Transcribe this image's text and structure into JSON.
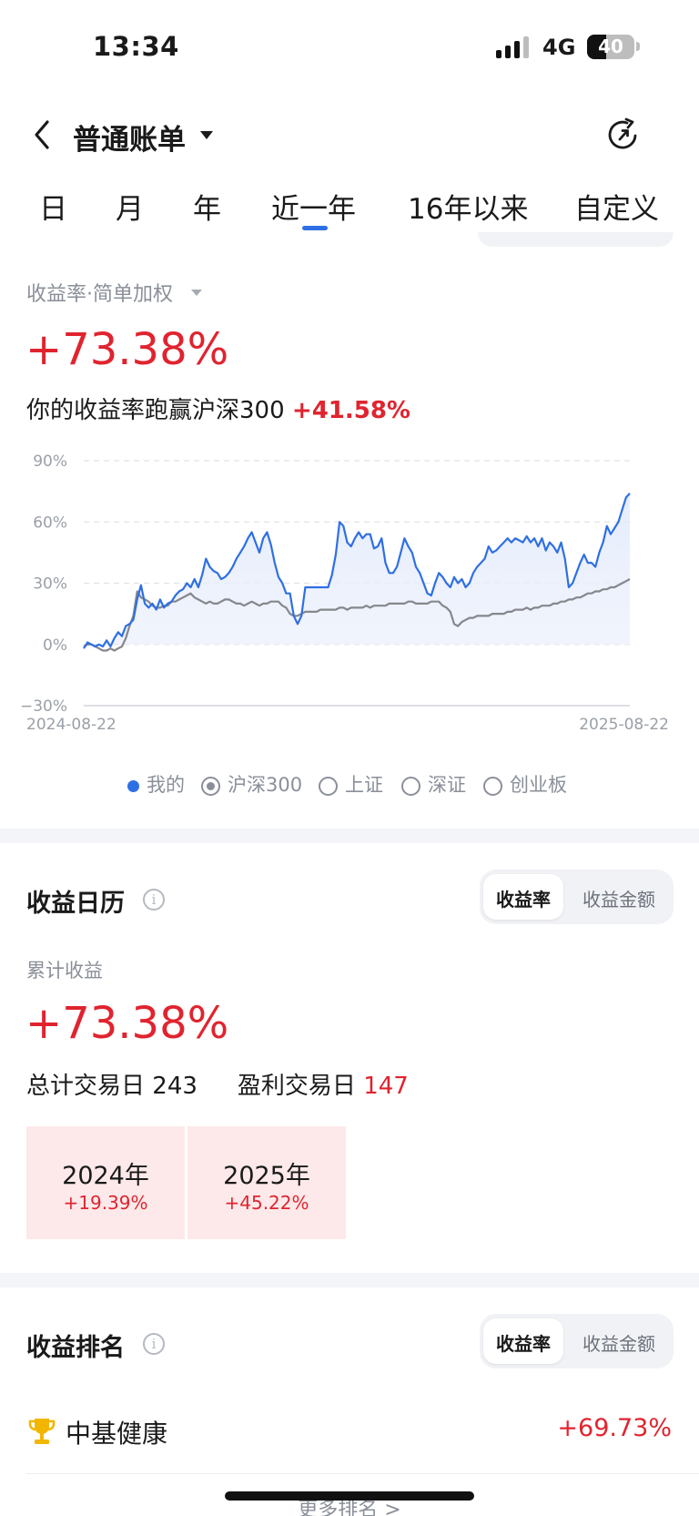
{
  "status_bar": {
    "time": "13:34",
    "network": "4G",
    "battery": "40"
  },
  "header": {
    "title": "普通账单"
  },
  "tabs": [
    "日",
    "月",
    "年",
    "近一年",
    "16年以来",
    "自定义"
  ],
  "active_tab": "近一年",
  "returns": {
    "label": "收益率·简单加权",
    "value": "+73.38%",
    "beat_text": "你的收益率跑赢沪深300",
    "beat_value": "+41.58%"
  },
  "chart_data": {
    "type": "line",
    "y_ticks": [
      "90%",
      "60%",
      "30%",
      "0%",
      "−30%"
    ],
    "ylim": [
      -30,
      90
    ],
    "x_start_label": "2024-08-22",
    "x_end_label": "2025-08-22",
    "series": [
      {
        "name": "我的",
        "color": "#2f6fe4",
        "values": [
          -2,
          1,
          0,
          -1,
          0,
          -1,
          2,
          -1,
          3,
          6,
          4,
          9,
          10,
          12,
          22,
          29,
          20,
          18,
          20,
          17,
          22,
          18,
          20,
          21,
          24,
          26,
          27,
          30,
          28,
          32,
          28,
          34,
          42,
          38,
          36,
          35,
          32,
          33,
          35,
          38,
          42,
          45,
          48,
          52,
          55,
          50,
          45,
          52,
          55,
          49,
          40,
          33,
          30,
          25,
          25,
          14,
          10,
          14,
          28,
          28,
          28,
          28,
          28,
          28,
          28,
          34,
          44,
          60,
          58,
          50,
          48,
          52,
          55,
          52,
          54,
          54,
          47,
          48,
          52,
          40,
          35,
          35,
          38,
          45,
          52,
          48,
          45,
          38,
          35,
          30,
          25,
          24,
          30,
          35,
          33,
          30,
          28,
          33,
          30,
          32,
          28,
          30,
          35,
          38,
          40,
          42,
          48,
          45,
          46,
          48,
          50,
          52,
          50,
          52,
          51,
          50,
          53,
          50,
          52,
          48,
          52,
          46,
          50,
          48,
          45,
          50,
          42,
          28,
          30,
          35,
          40,
          44,
          40,
          40,
          38,
          45,
          50,
          58,
          54,
          57,
          60,
          66,
          72,
          74
        ]
      },
      {
        "name": "沪深300",
        "color": "#85878c",
        "values": [
          -1,
          0,
          0,
          -1,
          -2,
          -3,
          -3,
          -2,
          -3,
          -2,
          -1,
          3,
          9,
          14,
          26,
          23,
          22,
          21,
          19,
          18,
          18,
          19,
          19,
          21,
          21,
          22,
          23,
          24,
          25,
          23,
          22,
          21,
          20,
          21,
          20,
          20,
          21,
          22,
          22,
          21,
          20,
          20,
          19,
          20,
          21,
          20,
          19,
          20,
          20,
          21,
          21,
          21,
          19,
          18,
          15,
          14,
          14,
          15,
          16,
          16,
          16,
          16,
          17,
          17,
          17,
          17,
          17,
          18,
          18,
          17,
          18,
          18,
          18,
          18,
          19,
          18,
          19,
          19,
          19,
          19,
          20,
          20,
          20,
          20,
          20,
          21,
          21,
          20,
          20,
          20,
          20,
          21,
          21,
          21,
          19,
          18,
          16,
          10,
          9,
          11,
          12,
          13,
          13,
          14,
          14,
          14,
          14,
          15,
          15,
          15,
          15,
          16,
          16,
          17,
          17,
          17,
          18,
          17,
          18,
          18,
          19,
          19,
          19,
          20,
          20,
          21,
          21,
          22,
          22,
          23,
          23,
          24,
          25,
          25,
          26,
          26,
          27,
          27,
          28,
          28,
          29,
          30,
          31,
          32
        ]
      }
    ],
    "legend": [
      "我的",
      "沪深300",
      "上证",
      "深证",
      "创业板"
    ],
    "legend_selected": "沪深300",
    "grid": true
  },
  "calendar": {
    "title": "收益日历",
    "info_glyph": "i",
    "toggle": [
      "收益率",
      "收益金额"
    ],
    "cumulative_label": "累计收益",
    "cumulative_value": "+73.38%",
    "total_days_label": "总计交易日",
    "total_days": "243",
    "profit_days_label": "盈利交易日",
    "profit_days": "147",
    "years": [
      {
        "year": "2024年",
        "pct": "+19.39%"
      },
      {
        "year": "2025年",
        "pct": "+45.22%"
      }
    ]
  },
  "ranking": {
    "title": "收益排名",
    "info_glyph": "i",
    "toggle": [
      "收益率",
      "收益金额"
    ],
    "items": [
      {
        "name": "中基健康",
        "pct": "+69.73%"
      }
    ],
    "more": "更多排名 >"
  },
  "colors": {
    "accent": "#2f6fe4",
    "up": "#e0242f",
    "benchmark": "#85878c"
  }
}
